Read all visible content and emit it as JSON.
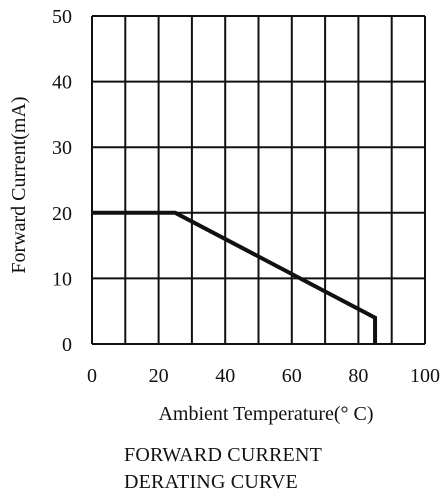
{
  "chart_data": {
    "type": "line",
    "title_lines": [
      "FORWARD CURRENT",
      "DERATING CURVE"
    ],
    "xlabel": "Ambient Temperature(° C)",
    "ylabel": "Forward Current(mA)",
    "xlim": [
      0,
      100
    ],
    "ylim": [
      0,
      50
    ],
    "x_ticks": [
      0,
      20,
      40,
      60,
      80,
      100
    ],
    "y_ticks": [
      0,
      10,
      20,
      30,
      40,
      50
    ],
    "x_grid_step": 10,
    "y_grid_step": 10,
    "grid": true,
    "line_color": "#111111",
    "grid_color": "#111111",
    "series": [
      {
        "x": [
          0,
          25,
          85,
          85
        ],
        "y": [
          20,
          20,
          4,
          0
        ]
      }
    ]
  }
}
